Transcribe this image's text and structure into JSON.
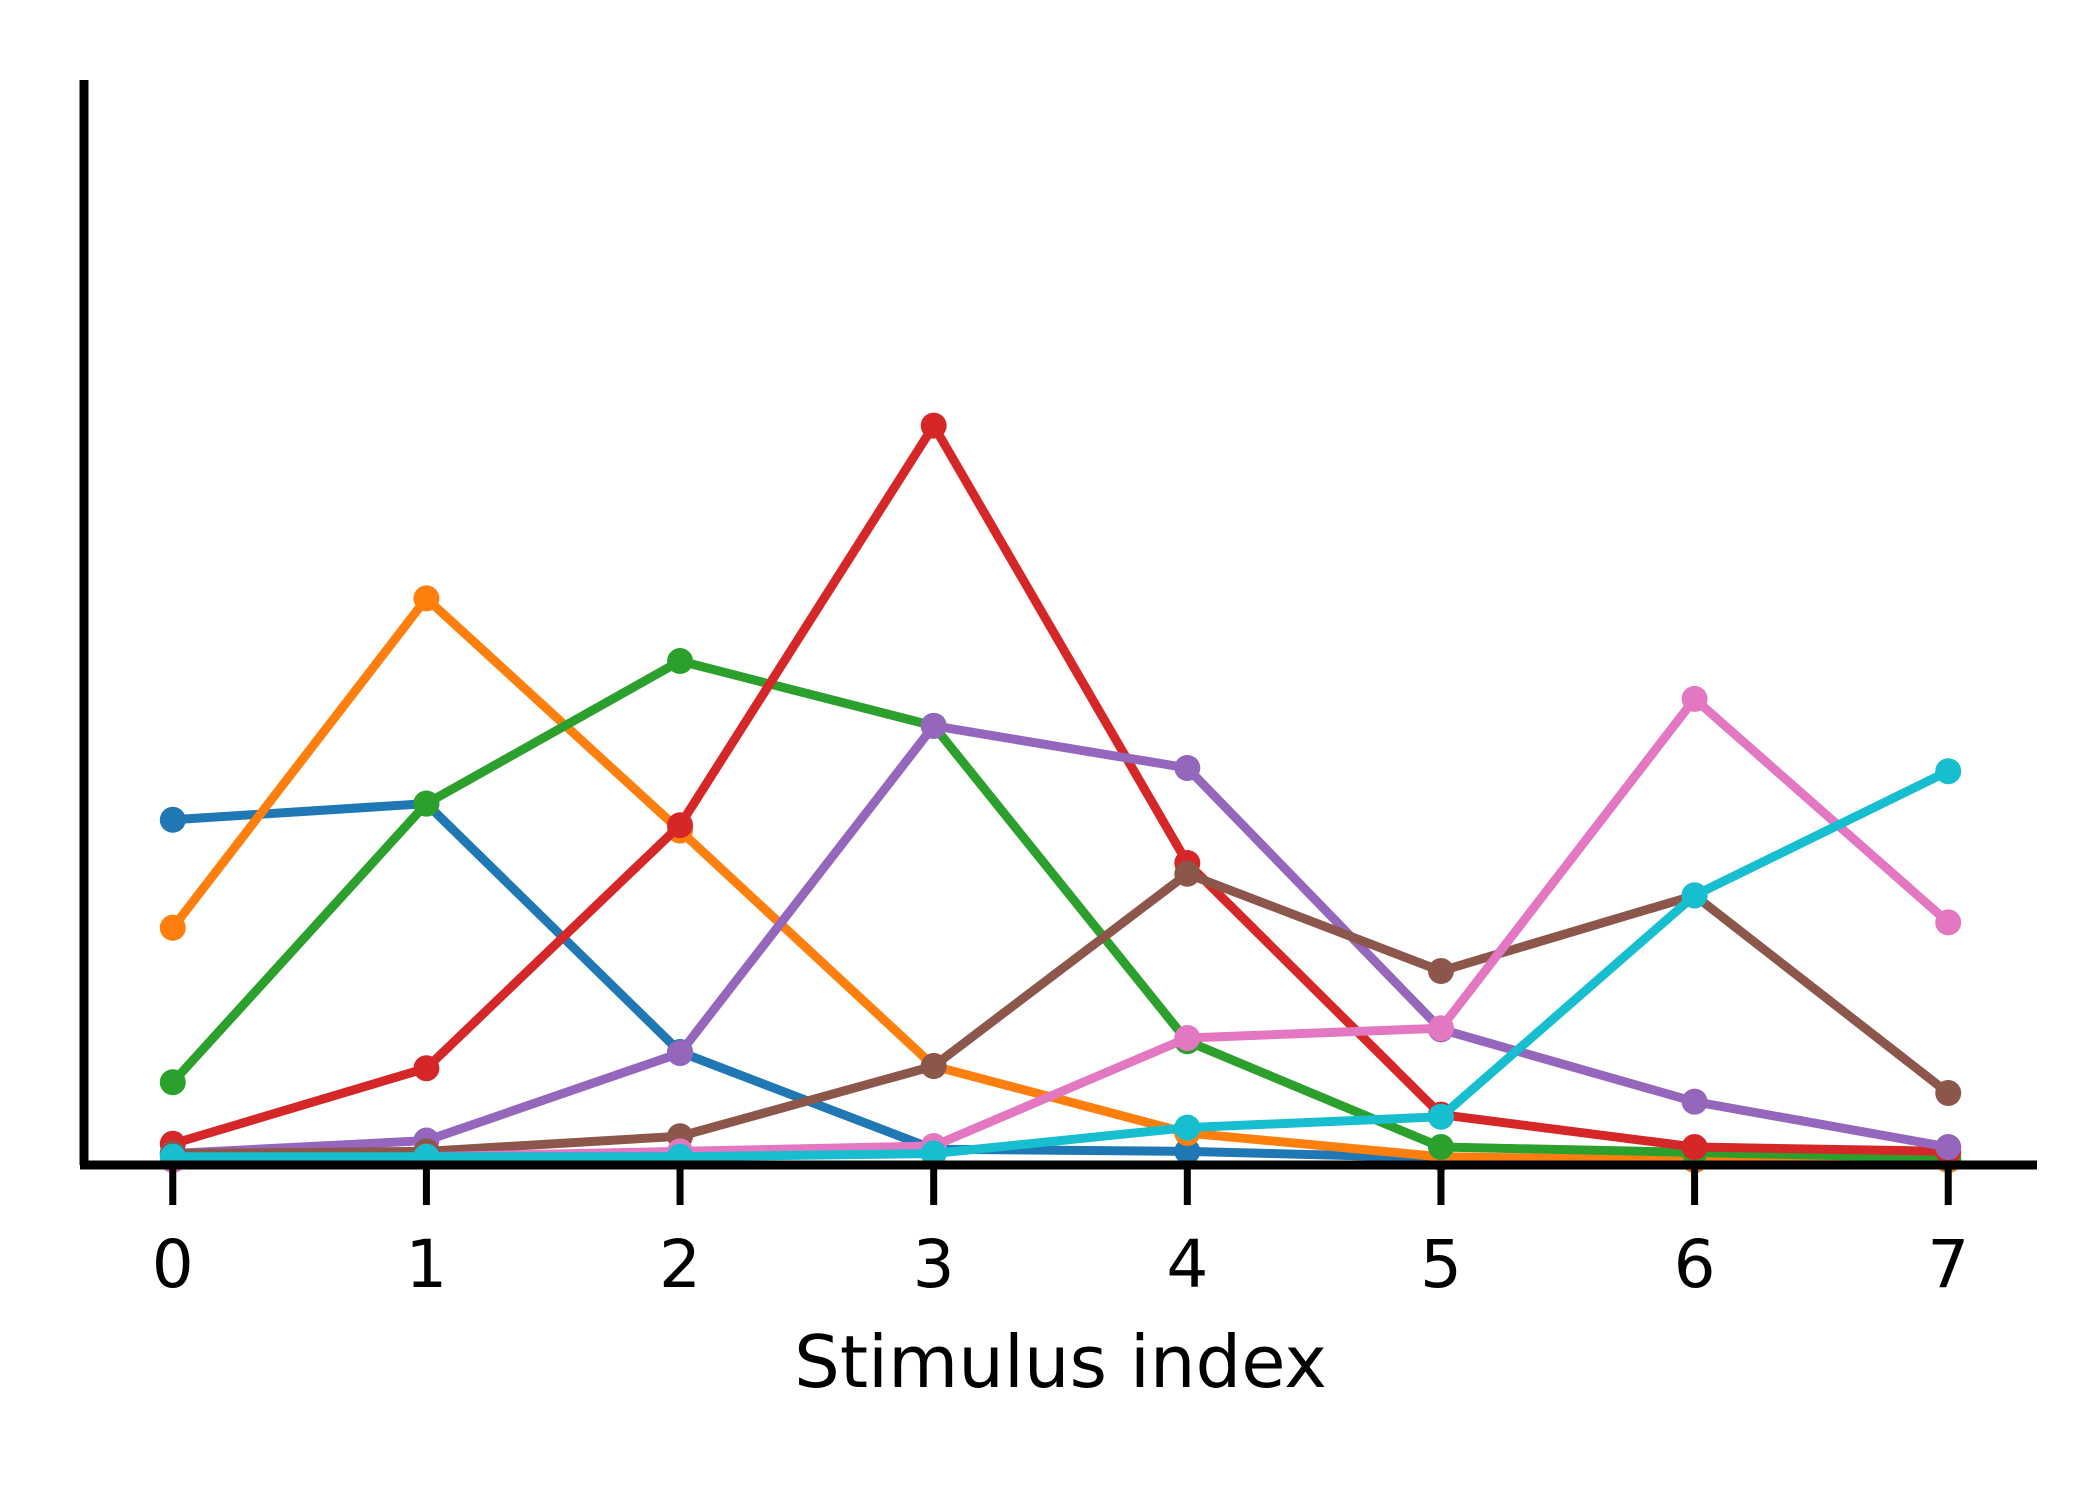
{
  "chart_data": {
    "type": "line",
    "title": "",
    "xlabel": "Stimulus index",
    "ylabel": "",
    "x": [
      0,
      1,
      2,
      3,
      4,
      5,
      6,
      7
    ],
    "xticks": [
      "0",
      "1",
      "2",
      "3",
      "4",
      "5",
      "6",
      "7"
    ],
    "xlim": [
      -0.35,
      7.35
    ],
    "ylim": [
      0,
      1.0
    ],
    "yticks_visible": false,
    "grid": false,
    "legend": "none",
    "series": [
      {
        "color": "#1f77b4",
        "values": [
          0.315,
          0.33,
          0.1,
          0.01,
          0.008,
          0.002,
          0.0,
          0.0
        ]
      },
      {
        "color": "#ff7f0e",
        "values": [
          0.215,
          0.52,
          0.305,
          0.087,
          0.025,
          0.003,
          0.0,
          0.0
        ]
      },
      {
        "color": "#2ca02c",
        "values": [
          0.072,
          0.33,
          0.462,
          0.402,
          0.11,
          0.012,
          0.007,
          0.002
        ]
      },
      {
        "color": "#d62728",
        "values": [
          0.015,
          0.085,
          0.31,
          0.68,
          0.275,
          0.042,
          0.012,
          0.008
        ]
      },
      {
        "color": "#9467bd",
        "values": [
          0.006,
          0.018,
          0.099,
          0.402,
          0.363,
          0.121,
          0.054,
          0.012
        ]
      },
      {
        "color": "#8c564b",
        "values": [
          0.006,
          0.008,
          0.022,
          0.087,
          0.265,
          0.175,
          0.245,
          0.062
        ]
      },
      {
        "color": "#e377c2",
        "values": [
          0.0,
          0.003,
          0.008,
          0.013,
          0.113,
          0.122,
          0.427,
          0.22
        ]
      },
      {
        "color": "#17becf",
        "values": [
          0.003,
          0.003,
          0.003,
          0.006,
          0.03,
          0.04,
          0.245,
          0.36
        ]
      }
    ]
  }
}
